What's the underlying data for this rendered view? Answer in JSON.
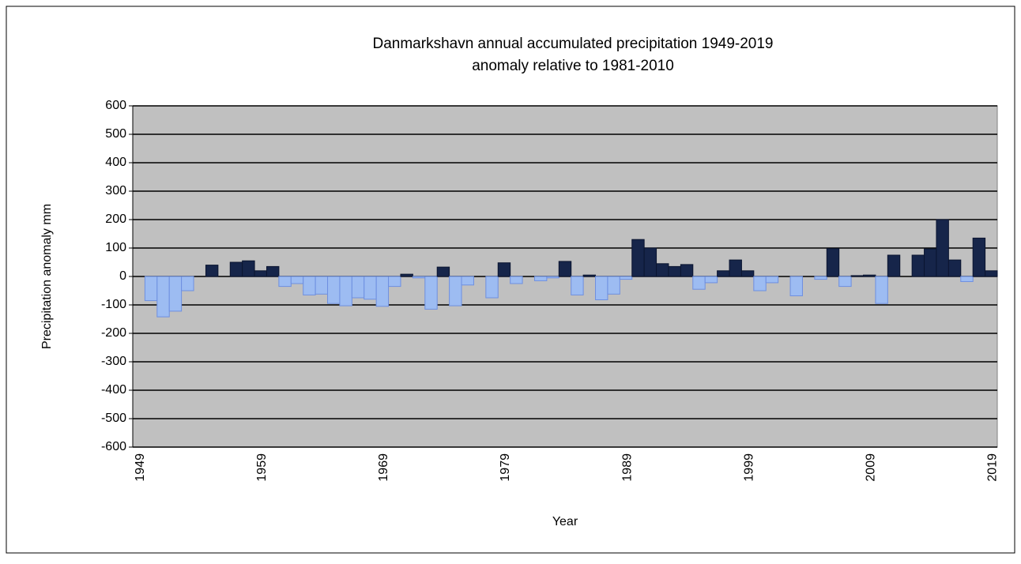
{
  "chart_data": {
    "type": "bar",
    "title": "Danmarkshavn annual  accumulated precipitation 1949-2019",
    "subtitle": "anomaly relative to 1981-2010",
    "x_label": "Year",
    "y_label": "Precipitation anomaly mm",
    "categories": [
      "1949",
      null,
      null,
      null,
      null,
      null,
      null,
      null,
      null,
      null,
      "1959",
      null,
      null,
      null,
      null,
      null,
      null,
      null,
      null,
      null,
      "1969",
      null,
      null,
      null,
      null,
      null,
      null,
      null,
      null,
      null,
      "1979",
      null,
      null,
      null,
      null,
      null,
      null,
      null,
      null,
      null,
      "1989",
      null,
      null,
      null,
      null,
      null,
      null,
      null,
      null,
      null,
      "1999",
      null,
      null,
      null,
      null,
      null,
      null,
      null,
      null,
      null,
      "2009",
      null,
      null,
      null,
      null,
      null,
      null,
      null,
      null,
      null,
      "2019"
    ],
    "values": [
      null,
      -85,
      -142,
      -122,
      -50,
      null,
      40,
      null,
      50,
      55,
      20,
      35,
      -35,
      -25,
      -65,
      -62,
      -95,
      -103,
      -75,
      -80,
      -105,
      -35,
      8,
      -5,
      -115,
      33,
      -103,
      -30,
      null,
      -75,
      48,
      -25,
      null,
      -15,
      -5,
      53,
      -65,
      5,
      -82,
      -62,
      -10,
      130,
      100,
      45,
      35,
      42,
      -45,
      -22,
      20,
      58,
      20,
      -50,
      -22,
      null,
      -68,
      null,
      -10,
      98,
      -35,
      3,
      5,
      -95,
      75,
      null,
      75,
      97,
      200,
      58,
      -18,
      135,
      20
    ],
    "color_positive": "#16254a",
    "color_negative": "#9dbcf2",
    "ylim": [
      -600,
      600
    ],
    "yticks": [
      -600,
      -500,
      -400,
      -300,
      -200,
      -100,
      0,
      100,
      200,
      300,
      400,
      500,
      600
    ],
    "grid": true,
    "plot_background": "#c0c0c0"
  }
}
